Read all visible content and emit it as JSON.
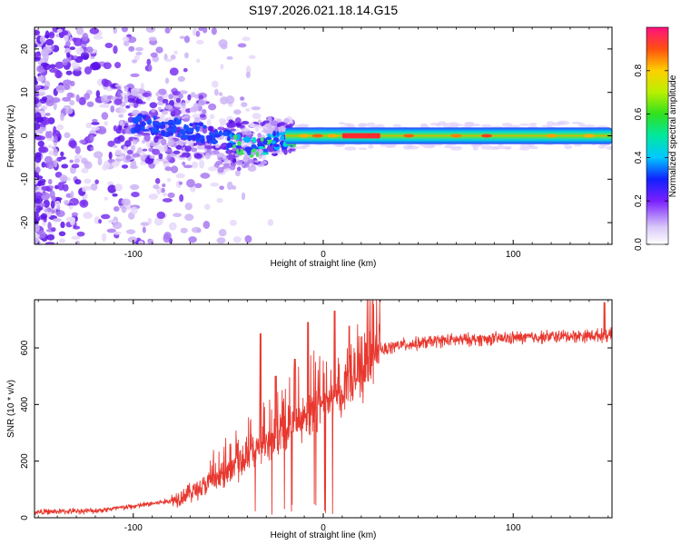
{
  "chart_data": [
    {
      "type": "heatmap",
      "title": "S197.2026.021.18.14.G15",
      "xlabel": "Height of straight line (km)",
      "ylabel": "Frequency (Hz)",
      "xlim": [
        -152,
        152
      ],
      "ylim": [
        -25,
        25
      ],
      "xticks": [
        -100,
        0,
        100
      ],
      "yticks": [
        -20,
        -10,
        0,
        10,
        20
      ],
      "colorbar": {
        "label": "Normalized spectral amplitude",
        "range": [
          0,
          1
        ],
        "ticks": [
          "0.0",
          "0.2",
          "0.4",
          "0.6",
          "0.8"
        ]
      },
      "ridge": [
        {
          "x": -150,
          "f": 0,
          "amp": 0.05
        },
        {
          "x": -95,
          "f": 3,
          "amp": 0.2
        },
        {
          "x": -80,
          "f": 2,
          "amp": 0.25
        },
        {
          "x": -55,
          "f": 0,
          "amp": 0.35
        },
        {
          "x": -45,
          "f": -2,
          "amp": 0.45
        },
        {
          "x": -35,
          "f": -3,
          "amp": 0.5
        },
        {
          "x": -25,
          "f": -1,
          "amp": 0.55
        },
        {
          "x": -10,
          "f": 0,
          "amp": 0.75
        },
        {
          "x": 0,
          "f": 0,
          "amp": 0.85
        },
        {
          "x": 20,
          "f": 0,
          "amp": 0.95
        },
        {
          "x": 60,
          "f": 0,
          "amp": 0.85
        },
        {
          "x": 100,
          "f": 0,
          "amp": 0.8
        },
        {
          "x": 150,
          "f": -0.5,
          "amp": 0.75
        }
      ]
    },
    {
      "type": "line",
      "xlabel": "Height of straight line (km)",
      "ylabel": "SNR (10 * v/v)",
      "xlim": [
        -152,
        152
      ],
      "ylim": [
        0,
        770
      ],
      "xticks": [
        -100,
        0,
        100
      ],
      "yticks": [
        0,
        200,
        400,
        600
      ],
      "series": [
        {
          "name": "SNR",
          "color": "#e8382f",
          "x": [
            -152,
            -120,
            -100,
            -80,
            -70,
            -60,
            -50,
            -40,
            -35,
            -30,
            -25,
            -20,
            -15,
            -10,
            -5,
            0,
            5,
            10,
            15,
            20,
            25,
            30,
            35,
            40,
            50,
            60,
            80,
            100,
            120,
            150
          ],
          "y": [
            20,
            25,
            40,
            60,
            90,
            120,
            160,
            210,
            240,
            260,
            280,
            300,
            340,
            360,
            380,
            400,
            420,
            450,
            480,
            520,
            560,
            590,
            600,
            610,
            615,
            625,
            630,
            635,
            640,
            645
          ],
          "spikes": [
            {
              "x": -33,
              "y": 650
            },
            {
              "x": -25,
              "y": 500
            },
            {
              "x": -15,
              "y": 560
            },
            {
              "x": -8,
              "y": 690
            },
            {
              "x": 6,
              "y": 730
            },
            {
              "x": 148,
              "y": 760
            }
          ]
        }
      ]
    }
  ]
}
